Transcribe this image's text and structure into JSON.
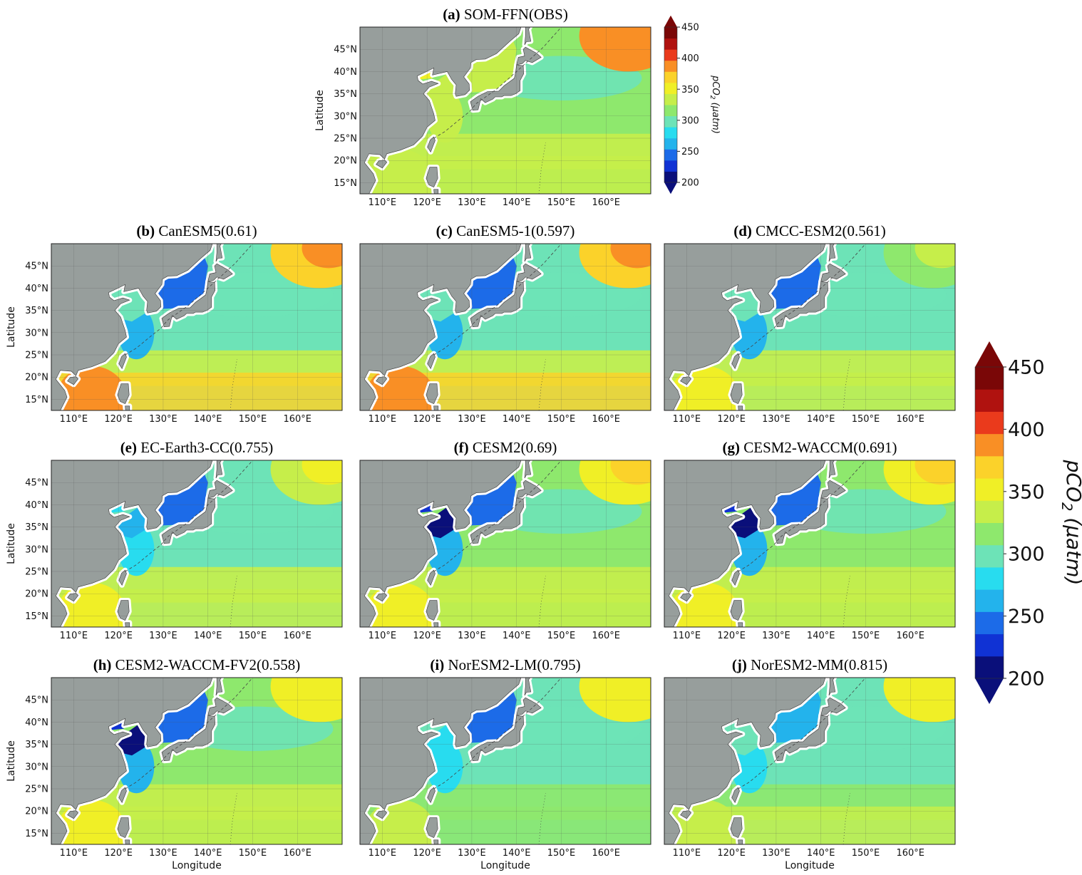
{
  "figure": {
    "colorbar_small": {
      "label": "pCO",
      "label_sub": "2",
      "label_unit": " (μatm)",
      "ticks": [
        "200",
        "250",
        "300",
        "350",
        "400",
        "450"
      ]
    },
    "colorbar_large": {
      "label": "pCO",
      "label_sub": "2",
      "label_unit": " (μatm)",
      "ticks": [
        "200",
        "250",
        "300",
        "350",
        "400",
        "450"
      ]
    },
    "axes": {
      "lon_ticks": [
        "110°E",
        "120°E",
        "130°E",
        "140°E",
        "150°E",
        "160°E"
      ],
      "lat_ticks": [
        "15°N",
        "20°N",
        "25°N",
        "30°N",
        "35°N",
        "40°N",
        "45°N"
      ],
      "xlabel": "Longitude",
      "ylabel": "Latitude"
    },
    "panels": [
      {
        "tag": "(a)",
        "name": "SOM-FFN(OBS)",
        "r": null
      },
      {
        "tag": "(b)",
        "name": "CanESM5(0.61)",
        "r": 0.61
      },
      {
        "tag": "(c)",
        "name": "CanESM5-1(0.597)",
        "r": 0.597
      },
      {
        "tag": "(d)",
        "name": "CMCC-ESM2(0.561)",
        "r": 0.561
      },
      {
        "tag": "(e)",
        "name": "EC-Earth3-CC(0.755)",
        "r": 0.755
      },
      {
        "tag": "(f)",
        "name": "CESM2(0.69)",
        "r": 0.69
      },
      {
        "tag": "(g)",
        "name": "CESM2-WACCM(0.691)",
        "r": 0.691
      },
      {
        "tag": "(h)",
        "name": "CESM2-WACCM-FV2(0.558)",
        "r": 0.558
      },
      {
        "tag": "(i)",
        "name": "NorESM2-LM(0.795)",
        "r": 0.795
      },
      {
        "tag": "(j)",
        "name": "NorESM2-MM(0.815)",
        "r": 0.815
      }
    ],
    "colors": {
      "land": "#979e9c",
      "colormap": [
        "#0a0f7a",
        "#1032d4",
        "#1c6be8",
        "#23b3ec",
        "#28dcef",
        "#6de3b7",
        "#8ee86d",
        "#c6ee4a",
        "#f0ef26",
        "#fbd22a",
        "#f98f25",
        "#ea3a1c",
        "#b0120f",
        "#7a0707"
      ]
    },
    "panel_fields": [
      {
        "base": 310,
        "ne": 380,
        "sw": 340,
        "sea": 335,
        "japan_sea": 330,
        "yellow_sea": 330,
        "ecs": 325
      },
      {
        "base": 305,
        "ne": 370,
        "sw": 380,
        "sea": 245,
        "japan_sea": 245,
        "yellow_sea": 290,
        "ecs": 270
      },
      {
        "base": 305,
        "ne": 370,
        "sw": 380,
        "sea": 245,
        "japan_sea": 245,
        "yellow_sea": 290,
        "ecs": 270
      },
      {
        "base": 300,
        "ne": 320,
        "sw": 350,
        "sea": 245,
        "japan_sea": 245,
        "yellow_sea": 290,
        "ecs": 270
      },
      {
        "base": 300,
        "ne": 340,
        "sw": 350,
        "sea": 250,
        "japan_sea": 250,
        "yellow_sea": 270,
        "ecs": 275
      },
      {
        "base": 310,
        "ne": 355,
        "sw": 350,
        "sea": 240,
        "japan_sea": 240,
        "yellow_sea": 215,
        "ecs": 270
      },
      {
        "base": 310,
        "ne": 355,
        "sw": 350,
        "sea": 240,
        "japan_sea": 240,
        "yellow_sea": 212,
        "ecs": 265
      },
      {
        "base": 310,
        "ne": 345,
        "sw": 350,
        "sea": 245,
        "japan_sea": 245,
        "yellow_sea": 215,
        "ecs": 270
      },
      {
        "base": 300,
        "ne": 345,
        "sw": 330,
        "sea": 245,
        "japan_sea": 245,
        "yellow_sea": 275,
        "ecs": 275
      },
      {
        "base": 305,
        "ne": 345,
        "sw": 335,
        "sea": 255,
        "japan_sea": 255,
        "yellow_sea": 290,
        "ecs": 280
      }
    ]
  }
}
